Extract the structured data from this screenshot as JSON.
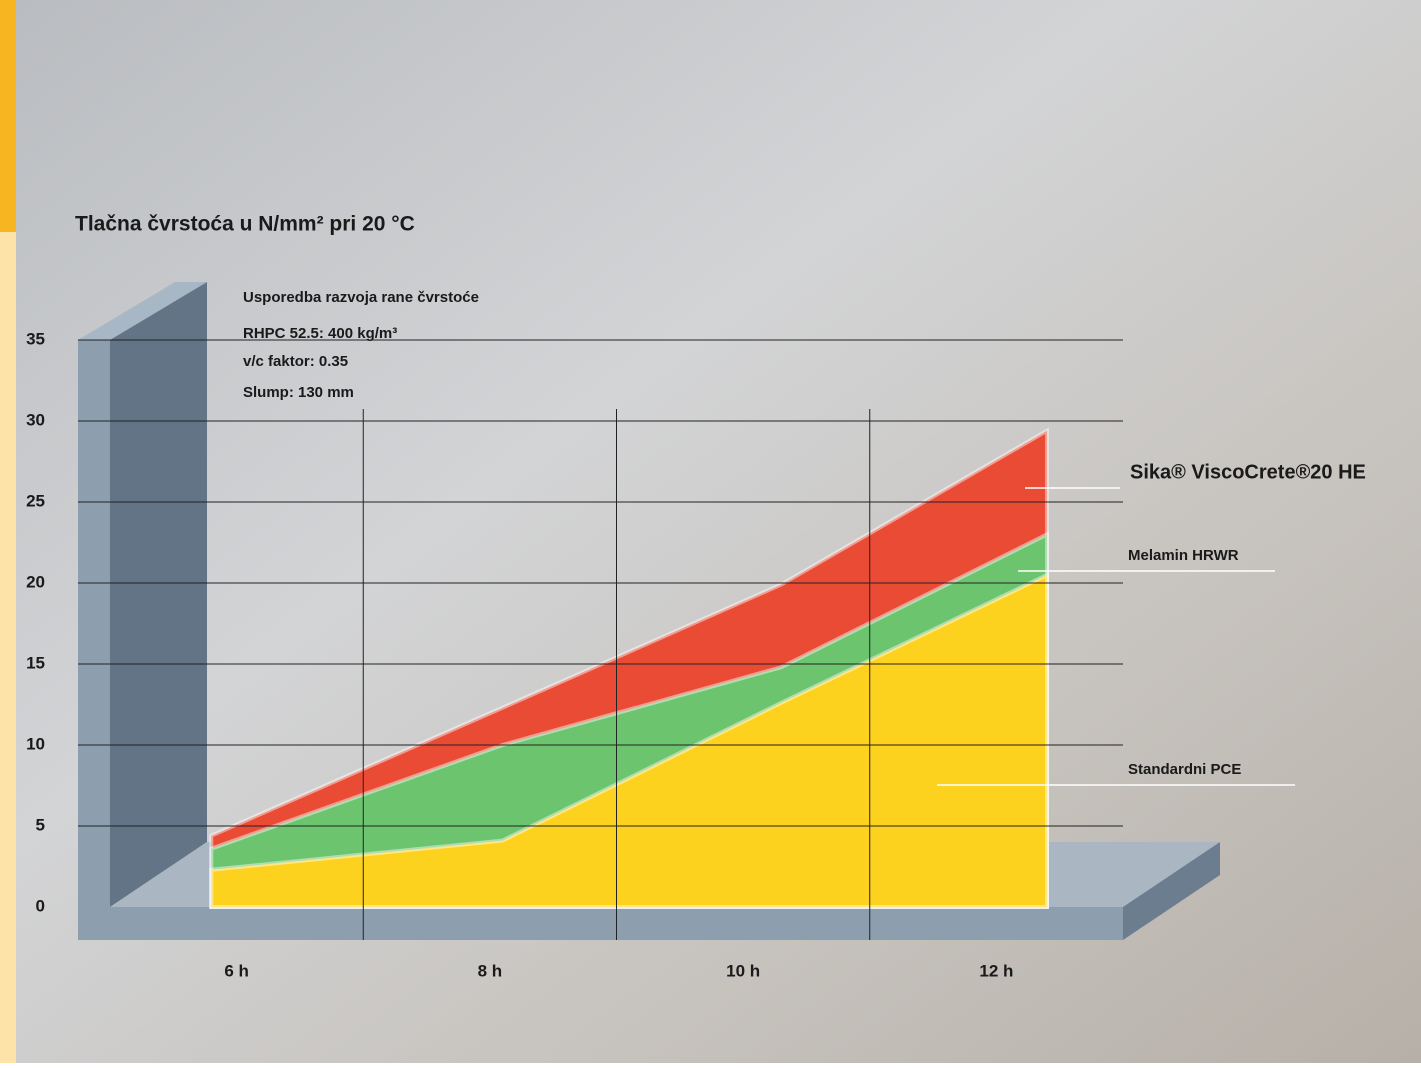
{
  "chart_data": {
    "type": "area",
    "title": "Tlačna čvrstoća u N/mm² pri 20 °C",
    "annotations": [
      "Usporedba razvoja rane čvrstoće",
      "RHPC 52.5: 400 kg/m³",
      "v/c faktor: 0.35",
      "Slump: 130 mm"
    ],
    "x": [
      5.8,
      8.1,
      10.3,
      12.4
    ],
    "series": [
      {
        "name": "Sika® ViscoCrete®20 HE",
        "color": "#e94b35",
        "values": [
          4.4,
          12.3,
          19.9,
          29.4
        ]
      },
      {
        "name": "Melamin HRWR",
        "color": "#6cc46f",
        "values": [
          3.6,
          10,
          14.8,
          23
        ]
      },
      {
        "name": "Standardni PCE",
        "color": "#fdd21f",
        "values": [
          2.3,
          4.1,
          12.6,
          20.5
        ]
      }
    ],
    "xlim": [
      5,
      13
    ],
    "xticks": [
      {
        "value": 6,
        "label": "6 h"
      },
      {
        "value": 8,
        "label": "8 h"
      },
      {
        "value": 10,
        "label": "10 h"
      },
      {
        "value": 12,
        "label": "12 h"
      }
    ],
    "ylim": [
      0,
      35
    ],
    "yticks": [
      0,
      5,
      10,
      15,
      20,
      25,
      30,
      35
    ],
    "grid": true
  }
}
